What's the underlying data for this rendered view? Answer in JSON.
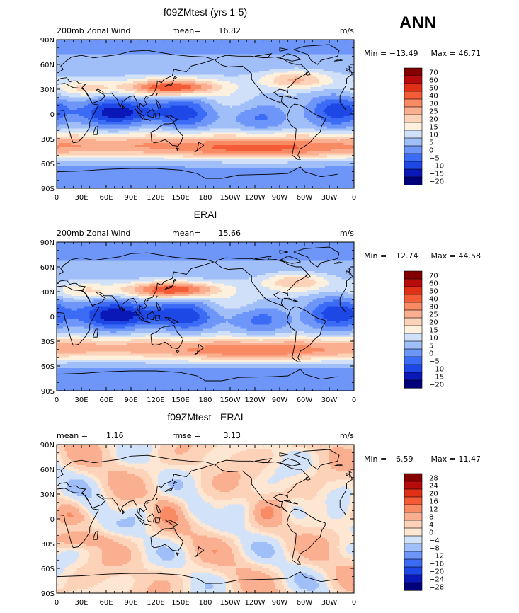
{
  "season": "ANN",
  "colors": {
    "wind": [
      "#00007a",
      "#0a18b8",
      "#1e48e6",
      "#3c6cf5",
      "#6e96f8",
      "#a0bef8",
      "#cfe0f8",
      "#fdf0dc",
      "#fcd2b8",
      "#fab090",
      "#f88a64",
      "#f45c38",
      "#e03016",
      "#b80c0c",
      "#840000"
    ],
    "diff": [
      "#00007a",
      "#0a18b8",
      "#1e48e6",
      "#3c6cf5",
      "#6e96f8",
      "#a0bef8",
      "#d2e2f8",
      "#fde6d2",
      "#fcd2b8",
      "#fab090",
      "#f88a64",
      "#f45c38",
      "#e03016",
      "#b80c0c",
      "#840000"
    ]
  },
  "chart_data": [
    {
      "type": "heatmap",
      "title": "f09ZMtest (yrs 1-5)",
      "left_label": "200mb Zonal Wind",
      "stat_label": "mean=",
      "stat_value": "16.82",
      "units": "m/s",
      "min_label": "Min = −13.49",
      "max_label": "Max =  46.71",
      "x_ticks": [
        "0",
        "30E",
        "60E",
        "90E",
        "120E",
        "150E",
        "180",
        "150W",
        "120W",
        "90W",
        "60W",
        "30W",
        "0"
      ],
      "y_ticks": [
        "90N",
        "60N",
        "30N",
        "0",
        "30S",
        "60S",
        "90S"
      ],
      "colorbar_levels": [
        "70",
        "60",
        "50",
        "40",
        "30",
        "25",
        "20",
        "15",
        "10",
        "5",
        "0",
        "−5",
        "−10",
        "−15",
        "−20"
      ],
      "scheme": "wind",
      "field": "model"
    },
    {
      "type": "heatmap",
      "title": "ERAI",
      "left_label": "200mb Zonal Wind",
      "stat_label": "mean=",
      "stat_value": "15.66",
      "units": "m/s",
      "min_label": "Min = −12.74",
      "max_label": "Max =  44.58",
      "x_ticks": [
        "0",
        "30E",
        "60E",
        "90E",
        "120E",
        "150E",
        "180",
        "150W",
        "120W",
        "90W",
        "60W",
        "30W",
        "0"
      ],
      "y_ticks": [
        "90N",
        "60N",
        "30N",
        "0",
        "30S",
        "60S",
        "90S"
      ],
      "colorbar_levels": [
        "70",
        "60",
        "50",
        "40",
        "30",
        "25",
        "20",
        "15",
        "10",
        "5",
        "0",
        "−5",
        "−10",
        "−15",
        "−20"
      ],
      "scheme": "wind",
      "field": "obs"
    },
    {
      "type": "heatmap",
      "title": "f09ZMtest - ERAI",
      "left_label": "mean =",
      "left_value": "1.16",
      "stat_label": "rmse =",
      "stat_value": "3.13",
      "units": "m/s",
      "min_label": "Min =  −6.59",
      "max_label": "Max =  11.47",
      "x_ticks": [
        "0",
        "30E",
        "60E",
        "90E",
        "120E",
        "150E",
        "180",
        "150W",
        "120W",
        "90W",
        "60W",
        "30W",
        "0"
      ],
      "y_ticks": [
        "90N",
        "60N",
        "30N",
        "0",
        "30S",
        "60S",
        "90S"
      ],
      "colorbar_levels": [
        "28",
        "24",
        "20",
        "16",
        "12",
        "8",
        "4",
        "0",
        "−4",
        "−8",
        "−12",
        "−16",
        "−20",
        "−24",
        "−28"
      ],
      "scheme": "diff",
      "field": "diff"
    }
  ]
}
